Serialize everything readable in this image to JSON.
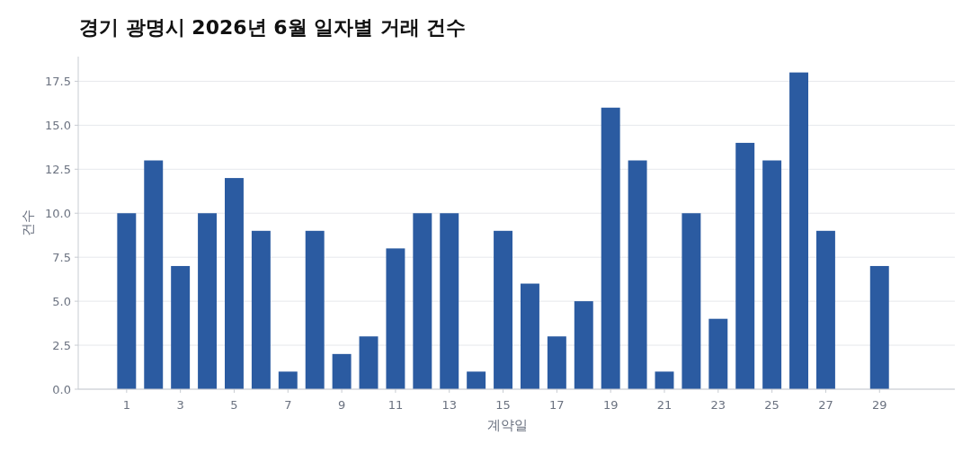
{
  "chart_data": {
    "type": "bar",
    "title": "경기 광명시 2026년 6월 일자별 거래 건수",
    "xlabel": "계약일",
    "ylabel": "건수",
    "x": [
      1,
      2,
      3,
      4,
      5,
      6,
      7,
      8,
      9,
      10,
      11,
      12,
      13,
      14,
      15,
      16,
      17,
      18,
      19,
      20,
      21,
      22,
      23,
      24,
      25,
      26,
      27,
      29
    ],
    "values": [
      10,
      13,
      7,
      10,
      12,
      9,
      1,
      9,
      2,
      3,
      8,
      10,
      10,
      1,
      9,
      6,
      3,
      5,
      16,
      13,
      1,
      10,
      4,
      14,
      13,
      18,
      9,
      7
    ],
    "color": "#2b5ba1",
    "xlim": [
      -0.8,
      31.8
    ],
    "xticks": [
      1,
      3,
      5,
      7,
      9,
      11,
      13,
      15,
      17,
      19,
      21,
      23,
      25,
      27,
      29
    ],
    "ylim": [
      0,
      18.9
    ],
    "yticks": [
      {
        "value": 0,
        "label": "0.0"
      },
      {
        "value": 2.5,
        "label": "2.5"
      },
      {
        "value": 5,
        "label": "5.0"
      },
      {
        "value": 7.5,
        "label": "7.5"
      },
      {
        "value": 10,
        "label": "10.0"
      },
      {
        "value": 12.5,
        "label": "12.5"
      },
      {
        "value": 15,
        "label": "15.0"
      },
      {
        "value": 17.5,
        "label": "17.5"
      }
    ],
    "grid": "y"
  }
}
